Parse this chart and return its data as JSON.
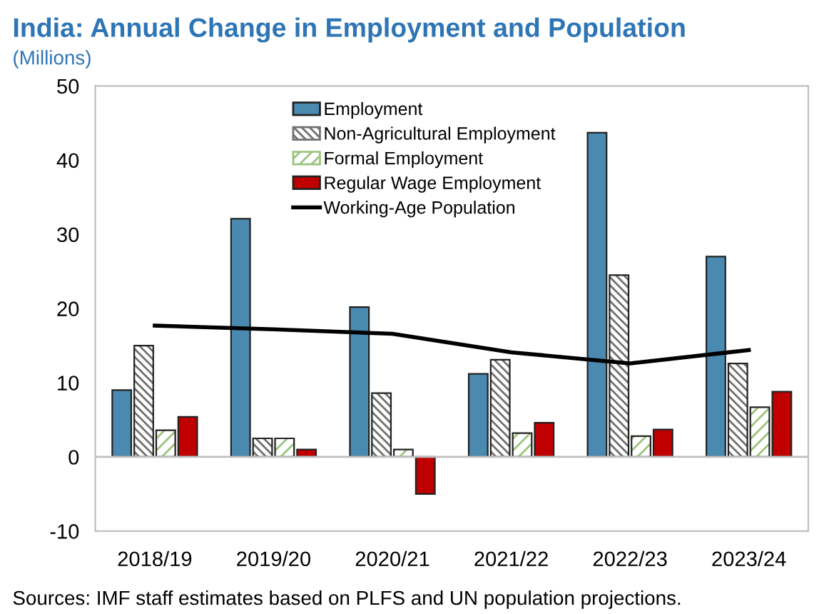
{
  "chart_data": {
    "type": "bar",
    "title": "India: Annual Change in Employment and Population",
    "subtitle": "(Millions)",
    "categories": [
      "2018/19",
      "2019/20",
      "2020/21",
      "2021/22",
      "2022/23",
      "2023/24"
    ],
    "series": [
      {
        "name": "Employment",
        "color": "#4a8ab0",
        "values": [
          9.0,
          32.1,
          20.2,
          11.2,
          43.7,
          27.0
        ]
      },
      {
        "name": "Non-Agricultural Employment",
        "color": "#707070",
        "values": [
          15.0,
          2.5,
          8.6,
          13.1,
          24.5,
          12.6
        ]
      },
      {
        "name": "Formal Employment",
        "color": "#9bc47e",
        "values": [
          3.6,
          2.5,
          1.0,
          3.2,
          2.8,
          6.7
        ]
      },
      {
        "name": "Regular Wage Employment",
        "color": "#c00000",
        "values": [
          5.4,
          1.0,
          -5.0,
          4.6,
          3.7,
          8.8
        ]
      },
      {
        "name": "Working-Age Population",
        "type": "line",
        "color": "#000000",
        "values": [
          17.7,
          17.2,
          16.6,
          14.1,
          12.6,
          14.4
        ]
      }
    ],
    "ylim": [
      -10,
      50
    ],
    "yticks": [
      -10,
      0,
      10,
      20,
      30,
      40,
      50
    ],
    "legend": "top",
    "annotations": [
      "Sources: IMF staff estimates based on PLFS and UN population projections."
    ]
  }
}
